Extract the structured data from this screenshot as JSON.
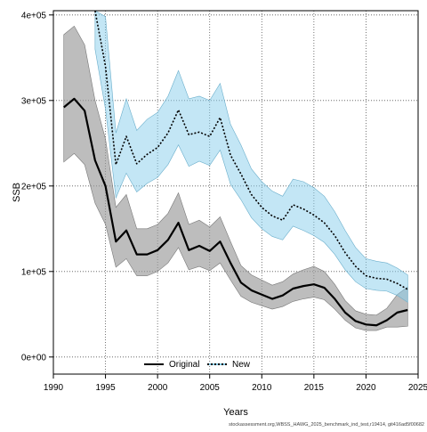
{
  "chart_data": {
    "type": "line",
    "title": "",
    "xlabel": "Years",
    "ylabel": "SSB",
    "x": [
      1991,
      1992,
      1993,
      1994,
      1995,
      1996,
      1997,
      1998,
      1999,
      2000,
      2001,
      2002,
      2003,
      2004,
      2005,
      2006,
      2007,
      2008,
      2009,
      2010,
      2011,
      2012,
      2013,
      2014,
      2015,
      2016,
      2017,
      2018,
      2019,
      2020,
      2021,
      2022,
      2023,
      2024
    ],
    "xlim": [
      1990,
      2025
    ],
    "ylim": [
      -20000,
      405000
    ],
    "xticks": [
      "1990",
      "1995",
      "2000",
      "2005",
      "2010",
      "2015",
      "2020",
      "2025"
    ],
    "xtick_values": [
      1990,
      1995,
      2000,
      2005,
      2010,
      2015,
      2020,
      2025
    ],
    "yticks": [
      "0e+00",
      "1e+05",
      "2e+05",
      "3e+05",
      "4e+05"
    ],
    "ytick_values": [
      0,
      100000,
      200000,
      300000,
      400000
    ],
    "grid": true,
    "legend_position": "bottom-center",
    "series": [
      {
        "name": "Original",
        "color": "#000000",
        "band_color": "#999999",
        "values": [
          292000,
          302000,
          288000,
          230000,
          200000,
          135000,
          148000,
          120000,
          120000,
          125000,
          137000,
          157000,
          125000,
          130000,
          124000,
          135000,
          110000,
          87000,
          78000,
          73000,
          68000,
          72000,
          80000,
          83000,
          85000,
          81000,
          68000,
          52000,
          42000,
          38000,
          37000,
          43000,
          52000,
          55000
        ],
        "lower": [
          228000,
          238000,
          225000,
          180000,
          155000,
          105000,
          115000,
          95000,
          95000,
          100000,
          110000,
          128000,
          102000,
          106000,
          101000,
          110000,
          90000,
          71000,
          64000,
          60000,
          56000,
          59000,
          65000,
          68000,
          70000,
          67000,
          56000,
          43000,
          34000,
          31000,
          31000,
          35000,
          35000,
          36000
        ],
        "upper": [
          377000,
          387000,
          365000,
          300000,
          255000,
          175000,
          190000,
          150000,
          150000,
          155000,
          168000,
          192000,
          155000,
          160000,
          152000,
          164000,
          135000,
          107000,
          96000,
          90000,
          84000,
          88000,
          97000,
          102000,
          106000,
          100000,
          85000,
          66000,
          54000,
          50000,
          49000,
          57000,
          73000,
          82000
        ]
      },
      {
        "name": "New",
        "color": "#000000",
        "band_color": "#87ceeb",
        "values": [
          null,
          null,
          null,
          405000,
          340000,
          225000,
          258000,
          226000,
          237000,
          245000,
          262000,
          289000,
          260000,
          263000,
          258000,
          280000,
          236000,
          214000,
          190000,
          175000,
          165000,
          160000,
          178000,
          173000,
          166000,
          157000,
          142000,
          122000,
          106000,
          95000,
          92000,
          91000,
          86000,
          79000
        ],
        "lower": [
          null,
          null,
          null,
          360000,
          290000,
          186000,
          215000,
          193000,
          203000,
          210000,
          225000,
          248000,
          223000,
          229000,
          224000,
          242000,
          202000,
          184000,
          163000,
          150000,
          141000,
          137000,
          153000,
          148000,
          142000,
          134000,
          120000,
          102000,
          88000,
          80000,
          78000,
          77000,
          72000,
          64000
        ],
        "upper": [
          null,
          null,
          null,
          405000,
          398000,
          262000,
          302000,
          265000,
          278000,
          286000,
          305000,
          335000,
          302000,
          305000,
          300000,
          320000,
          272000,
          248000,
          220000,
          205000,
          194000,
          188000,
          208000,
          205000,
          198000,
          188000,
          170000,
          148000,
          128000,
          115000,
          112000,
          110000,
          104000,
          96000
        ]
      }
    ],
    "footer": "stockassessment.org,WBSS_HAWG_2025_benchmark_ind_test,r19414, git416ad5f00682"
  }
}
